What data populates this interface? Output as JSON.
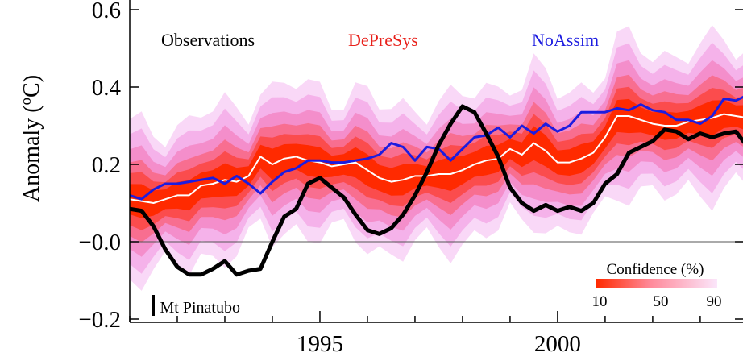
{
  "chart_data": {
    "type": "line",
    "ylabel_main": "Anomaly (",
    "ylabel_sup": "o",
    "ylabel_unit": "C)",
    "xlim": [
      1991.0,
      2003.9
    ],
    "ylim": [
      -0.2,
      0.62
    ],
    "x_ticks": [
      {
        "value": 1995,
        "label": "1995"
      },
      {
        "value": 2000,
        "label": "2000"
      }
    ],
    "y_ticks": [
      {
        "value": 0.6,
        "label": "0.6"
      },
      {
        "value": 0.4,
        "label": "0.4"
      },
      {
        "value": 0.2,
        "label": "0.2"
      },
      {
        "value": 0.0,
        "label": "−0.0"
      },
      {
        "value": -0.2,
        "label": "−0.2"
      }
    ],
    "legend": [
      {
        "label": "Observations",
        "color": "#000000"
      },
      {
        "label": "DePreSys",
        "color": "#e8201a"
      },
      {
        "label": "NoAssim",
        "color": "#1c1ce0"
      }
    ],
    "annotation": {
      "label": "Mt Pinatubo",
      "x": 1991.5
    },
    "confidence_bar": {
      "title": "Confidence (%)",
      "labels": [
        "10",
        "50",
        "90"
      ]
    },
    "colors": {
      "observations": "#000000",
      "depresys": "#ffffff",
      "noassim": "#1c1ce0",
      "band_inner": "#ff2a00",
      "band_outer": "#f4b8f0"
    },
    "series": [
      {
        "name": "Observations",
        "color": "#000000",
        "x_start": 1991.0,
        "x_step": 0.25,
        "values": [
          0.085,
          0.08,
          0.04,
          -0.02,
          -0.065,
          -0.085,
          -0.085,
          -0.07,
          -0.05,
          -0.085,
          -0.075,
          -0.07,
          0.0,
          0.065,
          0.085,
          0.15,
          0.165,
          0.14,
          0.115,
          0.07,
          0.03,
          0.02,
          0.035,
          0.07,
          0.12,
          0.18,
          0.25,
          0.305,
          0.35,
          0.335,
          0.28,
          0.22,
          0.14,
          0.1,
          0.08,
          0.095,
          0.08,
          0.09,
          0.08,
          0.1,
          0.15,
          0.175,
          0.23,
          0.245,
          0.26,
          0.29,
          0.285,
          0.265,
          0.28,
          0.27,
          0.28,
          0.285,
          0.245
        ]
      },
      {
        "name": "DePreSys",
        "color": "#ffffff",
        "x_start": 1991.0,
        "x_step": 0.25,
        "values": [
          0.11,
          0.105,
          0.1,
          0.11,
          0.12,
          0.12,
          0.145,
          0.15,
          0.16,
          0.155,
          0.17,
          0.22,
          0.2,
          0.215,
          0.22,
          0.21,
          0.205,
          0.195,
          0.2,
          0.205,
          0.185,
          0.165,
          0.155,
          0.16,
          0.17,
          0.17,
          0.175,
          0.175,
          0.185,
          0.2,
          0.21,
          0.215,
          0.24,
          0.225,
          0.255,
          0.235,
          0.205,
          0.205,
          0.215,
          0.23,
          0.27,
          0.325,
          0.325,
          0.315,
          0.305,
          0.3,
          0.3,
          0.31,
          0.315,
          0.32,
          0.33,
          0.325,
          0.32
        ]
      },
      {
        "name": "NoAssim",
        "color": "#1c1ce0",
        "x_start": 1991.0,
        "x_step": 0.25,
        "values": [
          0.12,
          0.11,
          0.135,
          0.15,
          0.15,
          0.155,
          0.16,
          0.165,
          0.15,
          0.17,
          0.15,
          0.125,
          0.155,
          0.18,
          0.19,
          0.21,
          0.21,
          0.205,
          0.205,
          0.21,
          0.215,
          0.225,
          0.255,
          0.245,
          0.21,
          0.245,
          0.24,
          0.21,
          0.24,
          0.27,
          0.275,
          0.295,
          0.27,
          0.3,
          0.28,
          0.305,
          0.285,
          0.3,
          0.335,
          0.335,
          0.335,
          0.345,
          0.34,
          0.355,
          0.34,
          0.335,
          0.315,
          0.315,
          0.305,
          0.325,
          0.37,
          0.365,
          0.38
        ]
      }
    ]
  }
}
